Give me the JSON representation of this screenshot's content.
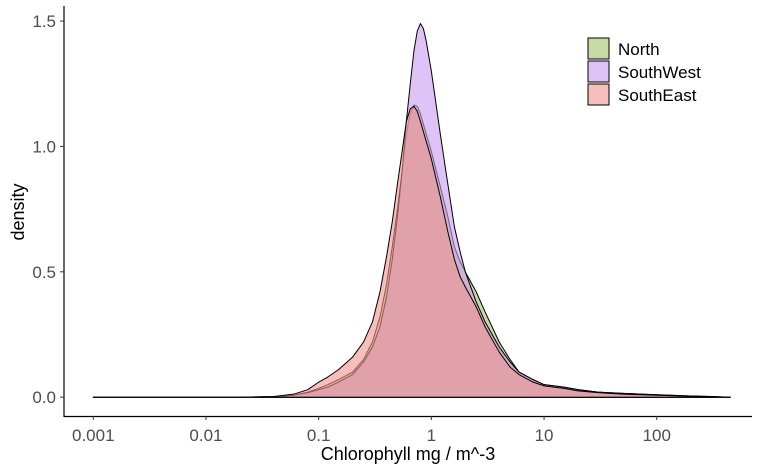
{
  "chart_data": {
    "type": "area",
    "xlabel": "Chlorophyll mg / m^-3",
    "ylabel": "density",
    "x_scale": "log10",
    "xlim": [
      0.00055,
      700
    ],
    "ylim": [
      -0.075,
      1.56
    ],
    "x_ticks": [
      0.001,
      0.01,
      0.1,
      1,
      10,
      100
    ],
    "x_tick_labels": [
      "0.001",
      "0.01",
      "0.1",
      "1",
      "10",
      "100"
    ],
    "y_ticks": [
      0,
      0.5,
      1,
      1.5
    ],
    "y_tick_labels": [
      "0.0",
      "0.5",
      "1.0",
      "1.5"
    ],
    "grid": false,
    "legend_position": "top-right",
    "series": [
      {
        "name": "North",
        "color": "#a3c26b",
        "points": [
          [
            0.001,
            0.0
          ],
          [
            0.02,
            0.0
          ],
          [
            0.04,
            0.002
          ],
          [
            0.06,
            0.008
          ],
          [
            0.08,
            0.02
          ],
          [
            0.1,
            0.035
          ],
          [
            0.12,
            0.05
          ],
          [
            0.15,
            0.07
          ],
          [
            0.2,
            0.1
          ],
          [
            0.25,
            0.15
          ],
          [
            0.3,
            0.22
          ],
          [
            0.35,
            0.32
          ],
          [
            0.4,
            0.45
          ],
          [
            0.45,
            0.6
          ],
          [
            0.5,
            0.75
          ],
          [
            0.55,
            0.9
          ],
          [
            0.6,
            1.05
          ],
          [
            0.65,
            1.13
          ],
          [
            0.7,
            1.165
          ],
          [
            0.75,
            1.16
          ],
          [
            0.8,
            1.13
          ],
          [
            0.9,
            1.05
          ],
          [
            1.0,
            0.98
          ],
          [
            1.2,
            0.84
          ],
          [
            1.4,
            0.72
          ],
          [
            1.6,
            0.6
          ],
          [
            1.8,
            0.54
          ],
          [
            2.0,
            0.5
          ],
          [
            2.5,
            0.42
          ],
          [
            3.0,
            0.34
          ],
          [
            4.0,
            0.22
          ],
          [
            5.0,
            0.15
          ],
          [
            6.0,
            0.1
          ],
          [
            8.0,
            0.07
          ],
          [
            10.0,
            0.05
          ],
          [
            15.0,
            0.04
          ],
          [
            20.0,
            0.03
          ],
          [
            30.0,
            0.02
          ],
          [
            50.0,
            0.015
          ],
          [
            100.0,
            0.01
          ],
          [
            200.0,
            0.005
          ],
          [
            300.0,
            0.003
          ],
          [
            450.0,
            0.0
          ]
        ]
      },
      {
        "name": "SouthWest",
        "color": "#c99bf0",
        "points": [
          [
            0.001,
            0.0
          ],
          [
            0.02,
            0.0
          ],
          [
            0.04,
            0.002
          ],
          [
            0.06,
            0.008
          ],
          [
            0.08,
            0.018
          ],
          [
            0.1,
            0.03
          ],
          [
            0.12,
            0.04
          ],
          [
            0.15,
            0.06
          ],
          [
            0.2,
            0.09
          ],
          [
            0.25,
            0.14
          ],
          [
            0.3,
            0.2
          ],
          [
            0.35,
            0.28
          ],
          [
            0.4,
            0.4
          ],
          [
            0.45,
            0.55
          ],
          [
            0.5,
            0.72
          ],
          [
            0.55,
            0.9
          ],
          [
            0.6,
            1.1
          ],
          [
            0.65,
            1.25
          ],
          [
            0.7,
            1.38
          ],
          [
            0.75,
            1.46
          ],
          [
            0.8,
            1.49
          ],
          [
            0.85,
            1.47
          ],
          [
            0.9,
            1.42
          ],
          [
            1.0,
            1.3
          ],
          [
            1.2,
            1.05
          ],
          [
            1.4,
            0.85
          ],
          [
            1.6,
            0.68
          ],
          [
            1.8,
            0.58
          ],
          [
            2.0,
            0.5
          ],
          [
            2.5,
            0.38
          ],
          [
            3.0,
            0.3
          ],
          [
            4.0,
            0.2
          ],
          [
            5.0,
            0.14
          ],
          [
            6.0,
            0.1
          ],
          [
            8.0,
            0.07
          ],
          [
            10.0,
            0.05
          ],
          [
            15.0,
            0.04
          ],
          [
            20.0,
            0.03
          ],
          [
            30.0,
            0.02
          ],
          [
            50.0,
            0.015
          ],
          [
            100.0,
            0.01
          ],
          [
            200.0,
            0.005
          ],
          [
            300.0,
            0.003
          ],
          [
            450.0,
            0.0
          ]
        ]
      },
      {
        "name": "SouthEast",
        "color": "#f09590",
        "points": [
          [
            0.001,
            0.0
          ],
          [
            0.02,
            0.0
          ],
          [
            0.04,
            0.003
          ],
          [
            0.06,
            0.012
          ],
          [
            0.08,
            0.03
          ],
          [
            0.1,
            0.06
          ],
          [
            0.12,
            0.08
          ],
          [
            0.15,
            0.11
          ],
          [
            0.2,
            0.16
          ],
          [
            0.25,
            0.22
          ],
          [
            0.3,
            0.3
          ],
          [
            0.35,
            0.42
          ],
          [
            0.4,
            0.56
          ],
          [
            0.45,
            0.7
          ],
          [
            0.5,
            0.85
          ],
          [
            0.55,
            0.98
          ],
          [
            0.6,
            1.1
          ],
          [
            0.65,
            1.15
          ],
          [
            0.7,
            1.16
          ],
          [
            0.75,
            1.14
          ],
          [
            0.8,
            1.1
          ],
          [
            0.9,
            1.02
          ],
          [
            1.0,
            0.95
          ],
          [
            1.2,
            0.8
          ],
          [
            1.4,
            0.66
          ],
          [
            1.6,
            0.55
          ],
          [
            1.8,
            0.48
          ],
          [
            2.0,
            0.44
          ],
          [
            2.5,
            0.36
          ],
          [
            3.0,
            0.28
          ],
          [
            4.0,
            0.18
          ],
          [
            5.0,
            0.12
          ],
          [
            6.0,
            0.09
          ],
          [
            8.0,
            0.06
          ],
          [
            10.0,
            0.045
          ],
          [
            15.0,
            0.035
          ],
          [
            20.0,
            0.025
          ],
          [
            30.0,
            0.018
          ],
          [
            50.0,
            0.012
          ],
          [
            100.0,
            0.008
          ],
          [
            200.0,
            0.004
          ],
          [
            300.0,
            0.002
          ],
          [
            450.0,
            0.0
          ]
        ]
      }
    ]
  }
}
